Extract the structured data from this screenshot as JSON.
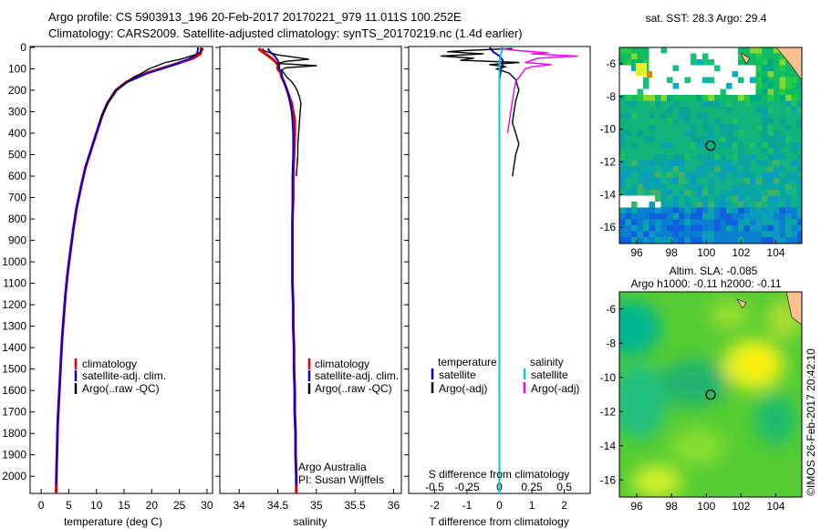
{
  "header": {
    "line1": "Argo profile: CS 5903913_196 20-Feb-2017 20170221_979 11.011S 100.252E",
    "line2": "Climatology: CARS2009. Satellite-adjusted climatology: synTS_20170219.nc (1.4d earlier)"
  },
  "chart_data": [
    {
      "type": "line",
      "xlabel": "temperature (deg C)",
      "xlim": [
        -2,
        31
      ],
      "xticks": [
        "0",
        "5",
        "10",
        "15",
        "20",
        "25",
        "30"
      ],
      "ylim": [
        2080,
        0
      ],
      "yticks": [
        "0",
        "100",
        "200",
        "300",
        "400",
        "500",
        "600",
        "700",
        "800",
        "900",
        "1000",
        "1100",
        "1200",
        "1300",
        "1400",
        "1500",
        "1600",
        "1700",
        "1800",
        "1900",
        "2000"
      ],
      "legend": [
        "climatology",
        "satellite-adj. clim.",
        "Argo(..raw -QC)"
      ],
      "series": [
        {
          "name": "climatology",
          "color": "#dd0000",
          "values": [
            [
              29,
              0
            ],
            [
              28.8,
              30
            ],
            [
              27.5,
              50
            ],
            [
              24,
              80
            ],
            [
              19,
              120
            ],
            [
              15.5,
              160
            ],
            [
              13.5,
              200
            ],
            [
              12,
              260
            ],
            [
              11,
              320
            ],
            [
              10,
              400
            ],
            [
              9,
              480
            ],
            [
              8,
              560
            ],
            [
              7.2,
              650
            ],
            [
              6.4,
              750
            ],
            [
              5.8,
              850
            ],
            [
              5.3,
              950
            ],
            [
              4.8,
              1050
            ],
            [
              4.4,
              1150
            ],
            [
              4.1,
              1250
            ],
            [
              3.8,
              1350
            ],
            [
              3.6,
              1450
            ],
            [
              3.4,
              1550
            ],
            [
              3.2,
              1650
            ],
            [
              3,
              1750
            ],
            [
              2.9,
              1850
            ],
            [
              2.8,
              1950
            ],
            [
              2.7,
              2080
            ]
          ]
        },
        {
          "name": "satellite-adj. clim.",
          "color": "#0000dd",
          "values": [
            [
              28.4,
              0
            ],
            [
              28.2,
              30
            ],
            [
              27,
              50
            ],
            [
              24.2,
              80
            ],
            [
              19.3,
              120
            ],
            [
              15.7,
              160
            ],
            [
              13.6,
              200
            ],
            [
              12,
              260
            ],
            [
              11,
              320
            ],
            [
              10,
              400
            ],
            [
              9,
              480
            ],
            [
              8,
              560
            ],
            [
              7.2,
              650
            ],
            [
              6.4,
              750
            ],
            [
              5.8,
              850
            ],
            [
              5.3,
              950
            ],
            [
              4.8,
              1050
            ],
            [
              4.4,
              1150
            ],
            [
              4.1,
              1250
            ],
            [
              3.8,
              1350
            ],
            [
              3.6,
              1450
            ],
            [
              3.4,
              1550
            ],
            [
              3.2,
              1650
            ],
            [
              3,
              1750
            ],
            [
              2.9,
              1850
            ],
            [
              2.8,
              1950
            ],
            [
              2.7,
              2040
            ]
          ]
        },
        {
          "name": "Argo(..raw -QC)",
          "color": "#000000",
          "values": [
            [
              29.3,
              5
            ],
            [
              29.1,
              15
            ],
            [
              28.6,
              25
            ],
            [
              27.8,
              35
            ],
            [
              26.5,
              45
            ],
            [
              25.2,
              55
            ],
            [
              22.5,
              70
            ],
            [
              21,
              85
            ],
            [
              19.5,
              100
            ],
            [
              18.2,
              120
            ],
            [
              16.6,
              140
            ],
            [
              15.6,
              160
            ],
            [
              14.4,
              180
            ],
            [
              13.7,
              200
            ],
            [
              12.9,
              230
            ],
            [
              12.1,
              260
            ],
            [
              11.2,
              300
            ],
            [
              10.6,
              350
            ]
          ]
        }
      ]
    },
    {
      "type": "line",
      "xlabel": "salinity",
      "xlim": [
        33.75,
        36.1
      ],
      "xticks": [
        "34",
        "34.5",
        "35",
        "35.5",
        "36"
      ],
      "ylim": [
        2080,
        0
      ],
      "legend": [
        "climatology",
        "satellite-adj. clim.",
        "Argo(..raw -QC)"
      ],
      "annotations": [
        "Argo Australia",
        "PI: Susan Wijffels"
      ],
      "series": [
        {
          "name": "climatology",
          "color": "#dd0000",
          "values": [
            [
              34.25,
              5
            ],
            [
              34.3,
              20
            ],
            [
              34.38,
              40
            ],
            [
              34.45,
              60
            ],
            [
              34.5,
              80
            ],
            [
              34.5,
              100
            ],
            [
              34.54,
              120
            ],
            [
              34.55,
              140
            ],
            [
              34.58,
              160
            ],
            [
              34.6,
              180
            ],
            [
              34.62,
              200
            ],
            [
              34.65,
              230
            ],
            [
              34.68,
              260
            ],
            [
              34.7,
              300
            ],
            [
              34.72,
              340
            ],
            [
              34.72,
              400
            ],
            [
              34.71,
              500
            ],
            [
              34.7,
              600
            ],
            [
              34.7,
              700
            ],
            [
              34.69,
              800
            ],
            [
              34.69,
              900
            ],
            [
              34.69,
              1000
            ],
            [
              34.69,
              1100
            ],
            [
              34.7,
              1200
            ],
            [
              34.7,
              1300
            ],
            [
              34.71,
              1400
            ],
            [
              34.71,
              1500
            ],
            [
              34.72,
              1600
            ],
            [
              34.72,
              1700
            ],
            [
              34.73,
              1800
            ],
            [
              34.73,
              1900
            ],
            [
              34.74,
              2000
            ],
            [
              34.74,
              2080
            ]
          ]
        },
        {
          "name": "satellite-adj. clim.",
          "color": "#0000dd",
          "values": [
            [
              34.37,
              5
            ],
            [
              34.4,
              20
            ],
            [
              34.46,
              40
            ],
            [
              34.5,
              60
            ],
            [
              34.52,
              80
            ],
            [
              34.52,
              100
            ],
            [
              34.55,
              120
            ],
            [
              34.56,
              140
            ],
            [
              34.58,
              160
            ],
            [
              34.6,
              180
            ],
            [
              34.62,
              200
            ],
            [
              34.64,
              230
            ],
            [
              34.66,
              260
            ],
            [
              34.68,
              300
            ],
            [
              34.69,
              340
            ],
            [
              34.7,
              400
            ],
            [
              34.7,
              500
            ],
            [
              34.69,
              600
            ],
            [
              34.69,
              700
            ],
            [
              34.69,
              800
            ],
            [
              34.69,
              900
            ],
            [
              34.69,
              1000
            ],
            [
              34.69,
              1100
            ],
            [
              34.7,
              1200
            ],
            [
              34.7,
              1300
            ],
            [
              34.71,
              1400
            ],
            [
              34.71,
              1500
            ],
            [
              34.72,
              1600
            ],
            [
              34.72,
              1700
            ],
            [
              34.73,
              1800
            ],
            [
              34.73,
              1900
            ],
            [
              34.74,
              2000
            ],
            [
              34.74,
              2040
            ]
          ]
        },
        {
          "name": "Argo(..raw -QC)",
          "color": "#000000",
          "values": [
            [
              34.3,
              5
            ],
            [
              34.32,
              15
            ],
            [
              34.4,
              25
            ],
            [
              34.5,
              35
            ],
            [
              34.7,
              45
            ],
            [
              34.9,
              55
            ],
            [
              34.6,
              65
            ],
            [
              34.5,
              75
            ],
            [
              35.0,
              85
            ],
            [
              34.6,
              95
            ],
            [
              34.55,
              105
            ],
            [
              34.58,
              120
            ],
            [
              34.62,
              140
            ],
            [
              34.68,
              160
            ],
            [
              34.72,
              180
            ],
            [
              34.75,
              200
            ],
            [
              34.78,
              230
            ],
            [
              34.8,
              260
            ],
            [
              34.79,
              300
            ],
            [
              34.78,
              350
            ],
            [
              34.77,
              400
            ],
            [
              34.76,
              450
            ],
            [
              34.76,
              500
            ],
            [
              34.75,
              550
            ],
            [
              34.74,
              600
            ]
          ]
        }
      ]
    },
    {
      "type": "line",
      "xlabel": "T difference from climatology",
      "xlabel2": "S difference from climatology",
      "xlim": [
        -2.8,
        2.8
      ],
      "xticks": [
        "-2",
        "-1",
        "0",
        "1",
        "2"
      ],
      "xticks2": [
        "-0.5",
        "-0.25",
        "0",
        "0.25",
        "0.5"
      ],
      "ylim": [
        2080,
        0
      ],
      "legend": [
        "temperature",
        "satellite",
        "Argo(-adj)",
        "salinity",
        "satellite",
        "Argo(-adj)"
      ],
      "series": [
        {
          "name": "satellite",
          "color": "#0000dd",
          "values": [
            [
              -0.3,
              0
            ],
            [
              -0.2,
              20
            ],
            [
              0,
              40
            ],
            [
              0.1,
              60
            ],
            [
              0.1,
              80
            ],
            [
              0.05,
              100
            ],
            [
              0,
              150
            ],
            [
              0,
              200
            ],
            [
              0,
              300
            ],
            [
              0,
              500
            ],
            [
              0,
              1000
            ],
            [
              0,
              1500
            ],
            [
              0,
              2080
            ]
          ]
        },
        {
          "name": "Argo(-adj)",
          "color": "#000000",
          "values": [
            [
              0.4,
              5
            ],
            [
              -1.1,
              15
            ],
            [
              -1.6,
              20
            ],
            [
              -0.5,
              30
            ],
            [
              -1.8,
              40
            ],
            [
              -0.8,
              50
            ],
            [
              -1.2,
              60
            ],
            [
              0.6,
              70
            ],
            [
              -0.3,
              80
            ],
            [
              0.2,
              90
            ],
            [
              -0.1,
              100
            ],
            [
              0.3,
              120
            ],
            [
              0.5,
              150
            ],
            [
              0.6,
              200
            ],
            [
              0.5,
              250
            ],
            [
              0.45,
              300
            ],
            [
              0.4,
              350
            ],
            [
              0.5,
              400
            ],
            [
              0.6,
              450
            ],
            [
              0.5,
              500
            ],
            [
              0.45,
              550
            ],
            [
              0.4,
              600
            ]
          ]
        },
        {
          "name": "satellite",
          "color": "#00cccc",
          "values": [
            [
              0.1,
              0
            ],
            [
              0.05,
              30
            ],
            [
              0,
              60
            ],
            [
              0,
              100
            ],
            [
              0,
              200
            ],
            [
              0,
              400
            ],
            [
              0,
              1000
            ],
            [
              0,
              1600
            ],
            [
              0,
              2080
            ]
          ]
        },
        {
          "name": "Argo(-adj)",
          "color": "#ee00ee",
          "values": [
            [
              0,
              5
            ],
            [
              0.6,
              15
            ],
            [
              1.5,
              25
            ],
            [
              1.0,
              30
            ],
            [
              2.4,
              40
            ],
            [
              1.2,
              50
            ],
            [
              1.0,
              60
            ],
            [
              0.8,
              70
            ],
            [
              1.6,
              80
            ],
            [
              1.0,
              90
            ],
            [
              0.8,
              100
            ],
            [
              0.7,
              120
            ],
            [
              0.6,
              140
            ],
            [
              0.5,
              160
            ],
            [
              0.45,
              200
            ],
            [
              0.4,
              250
            ],
            [
              0.35,
              300
            ],
            [
              0.3,
              350
            ],
            [
              0.25,
              400
            ]
          ]
        }
      ]
    },
    {
      "type": "heatmap",
      "title": "sat. SST: 28.3 Argo: 29.4",
      "xticks": [
        "96",
        "98",
        "100",
        "102",
        "104"
      ],
      "yticks": [
        "-6",
        "-8",
        "-10",
        "-12",
        "-14",
        "-16"
      ],
      "xlim": [
        95,
        105.5
      ],
      "ylim": [
        -17,
        -5
      ],
      "marker": [
        100.25,
        -11.01
      ]
    },
    {
      "type": "heatmap",
      "title": "Altim. SLA: -0.085",
      "subtitle": "Argo h1000: -0.11 h2000: -0.11",
      "xticks": [
        "96",
        "98",
        "100",
        "102",
        "104"
      ],
      "yticks": [
        "-6",
        "-8",
        "-10",
        "-12",
        "-14",
        "-16"
      ],
      "xlim": [
        95,
        105.5
      ],
      "ylim": [
        -17,
        -5
      ],
      "marker": [
        100.25,
        -11.01
      ]
    }
  ],
  "footer": {
    "watermark": "©IMOS 26-Feb-2017 20:42:10"
  }
}
